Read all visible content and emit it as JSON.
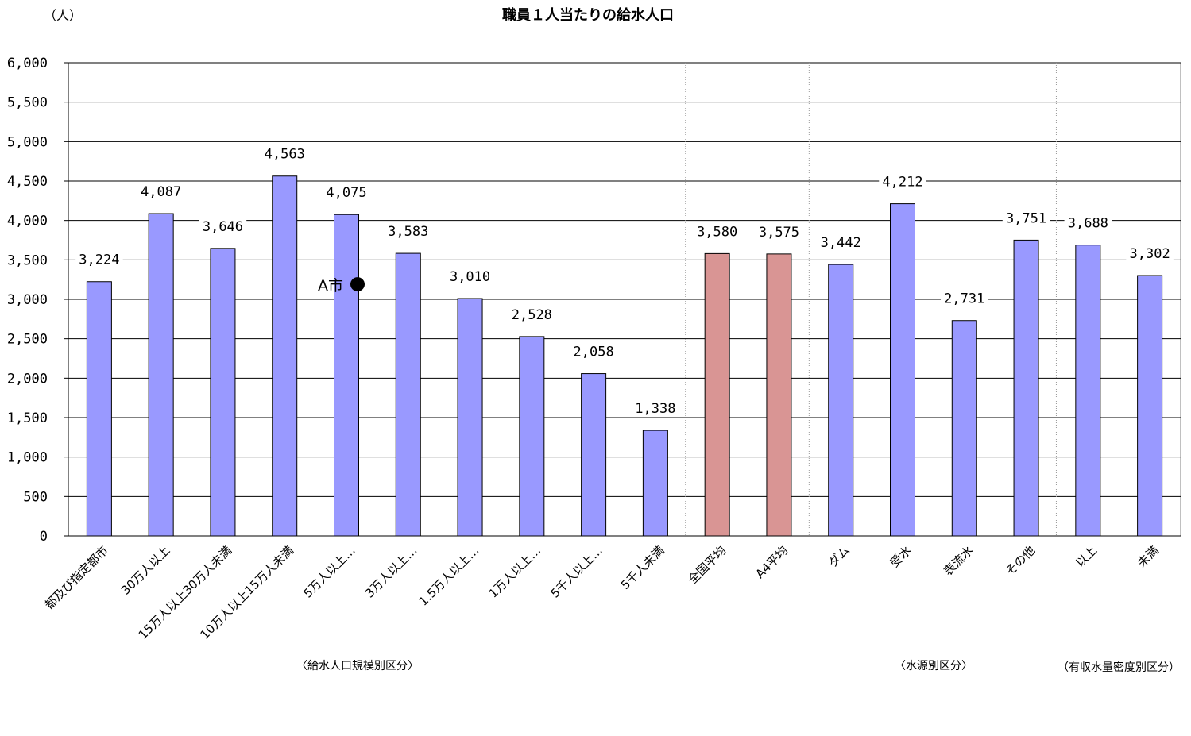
{
  "chart_data": {
    "type": "bar",
    "title": "職員１人当たりの給水人口",
    "unit_label": "（人）",
    "ylim": [
      0,
      6000
    ],
    "yticks": [
      0,
      500,
      1000,
      1500,
      2000,
      2500,
      3000,
      3500,
      4000,
      4500,
      5000,
      5500,
      6000
    ],
    "ytick_labels": [
      "0",
      "500",
      "1,000",
      "1,500",
      "2,000",
      "2,500",
      "3,000",
      "3,500",
      "4,000",
      "4,500",
      "5,000",
      "5,500",
      "6,000"
    ],
    "grid": true,
    "categories": [
      "都及び指定都市",
      "30万人以上",
      "15万人以上30万人未満",
      "10万人以上15万人未満",
      "5万人以上…",
      "3万人以上…",
      "1.5万人以上…",
      "1万人以上…",
      "5千人以上…",
      "5千人未満",
      "全国平均",
      "A4平均",
      "ダム",
      "受水",
      "表流水",
      "その他",
      "以上",
      "未満"
    ],
    "values": [
      3224,
      4087,
      3646,
      4563,
      4075,
      3583,
      3010,
      2528,
      2058,
      1338,
      3580,
      3575,
      3442,
      4212,
      2731,
      3751,
      3688,
      3302
    ],
    "value_labels": [
      "3,224",
      "4,087",
      "3,646",
      "4,563",
      "4,075",
      "3,583",
      "3,010",
      "2,528",
      "2,058",
      "1,338",
      "3,580",
      "3,575",
      "3,442",
      "4,212",
      "2,731",
      "3,751",
      "3,688",
      "3,302"
    ],
    "bar_colors": [
      "#9999ff",
      "#9999ff",
      "#9999ff",
      "#9999ff",
      "#9999ff",
      "#9999ff",
      "#9999ff",
      "#9999ff",
      "#9999ff",
      "#9999ff",
      "#d99594",
      "#d99594",
      "#9999ff",
      "#9999ff",
      "#9999ff",
      "#9999ff",
      "#9999ff",
      "#9999ff"
    ],
    "group_labels": [
      "〈給水人口規模別区分〉",
      "〈水源別区分〉",
      "（有収水量密度別区分）"
    ],
    "marker": {
      "label": "A市",
      "category_index": 4,
      "value": 3100
    }
  }
}
